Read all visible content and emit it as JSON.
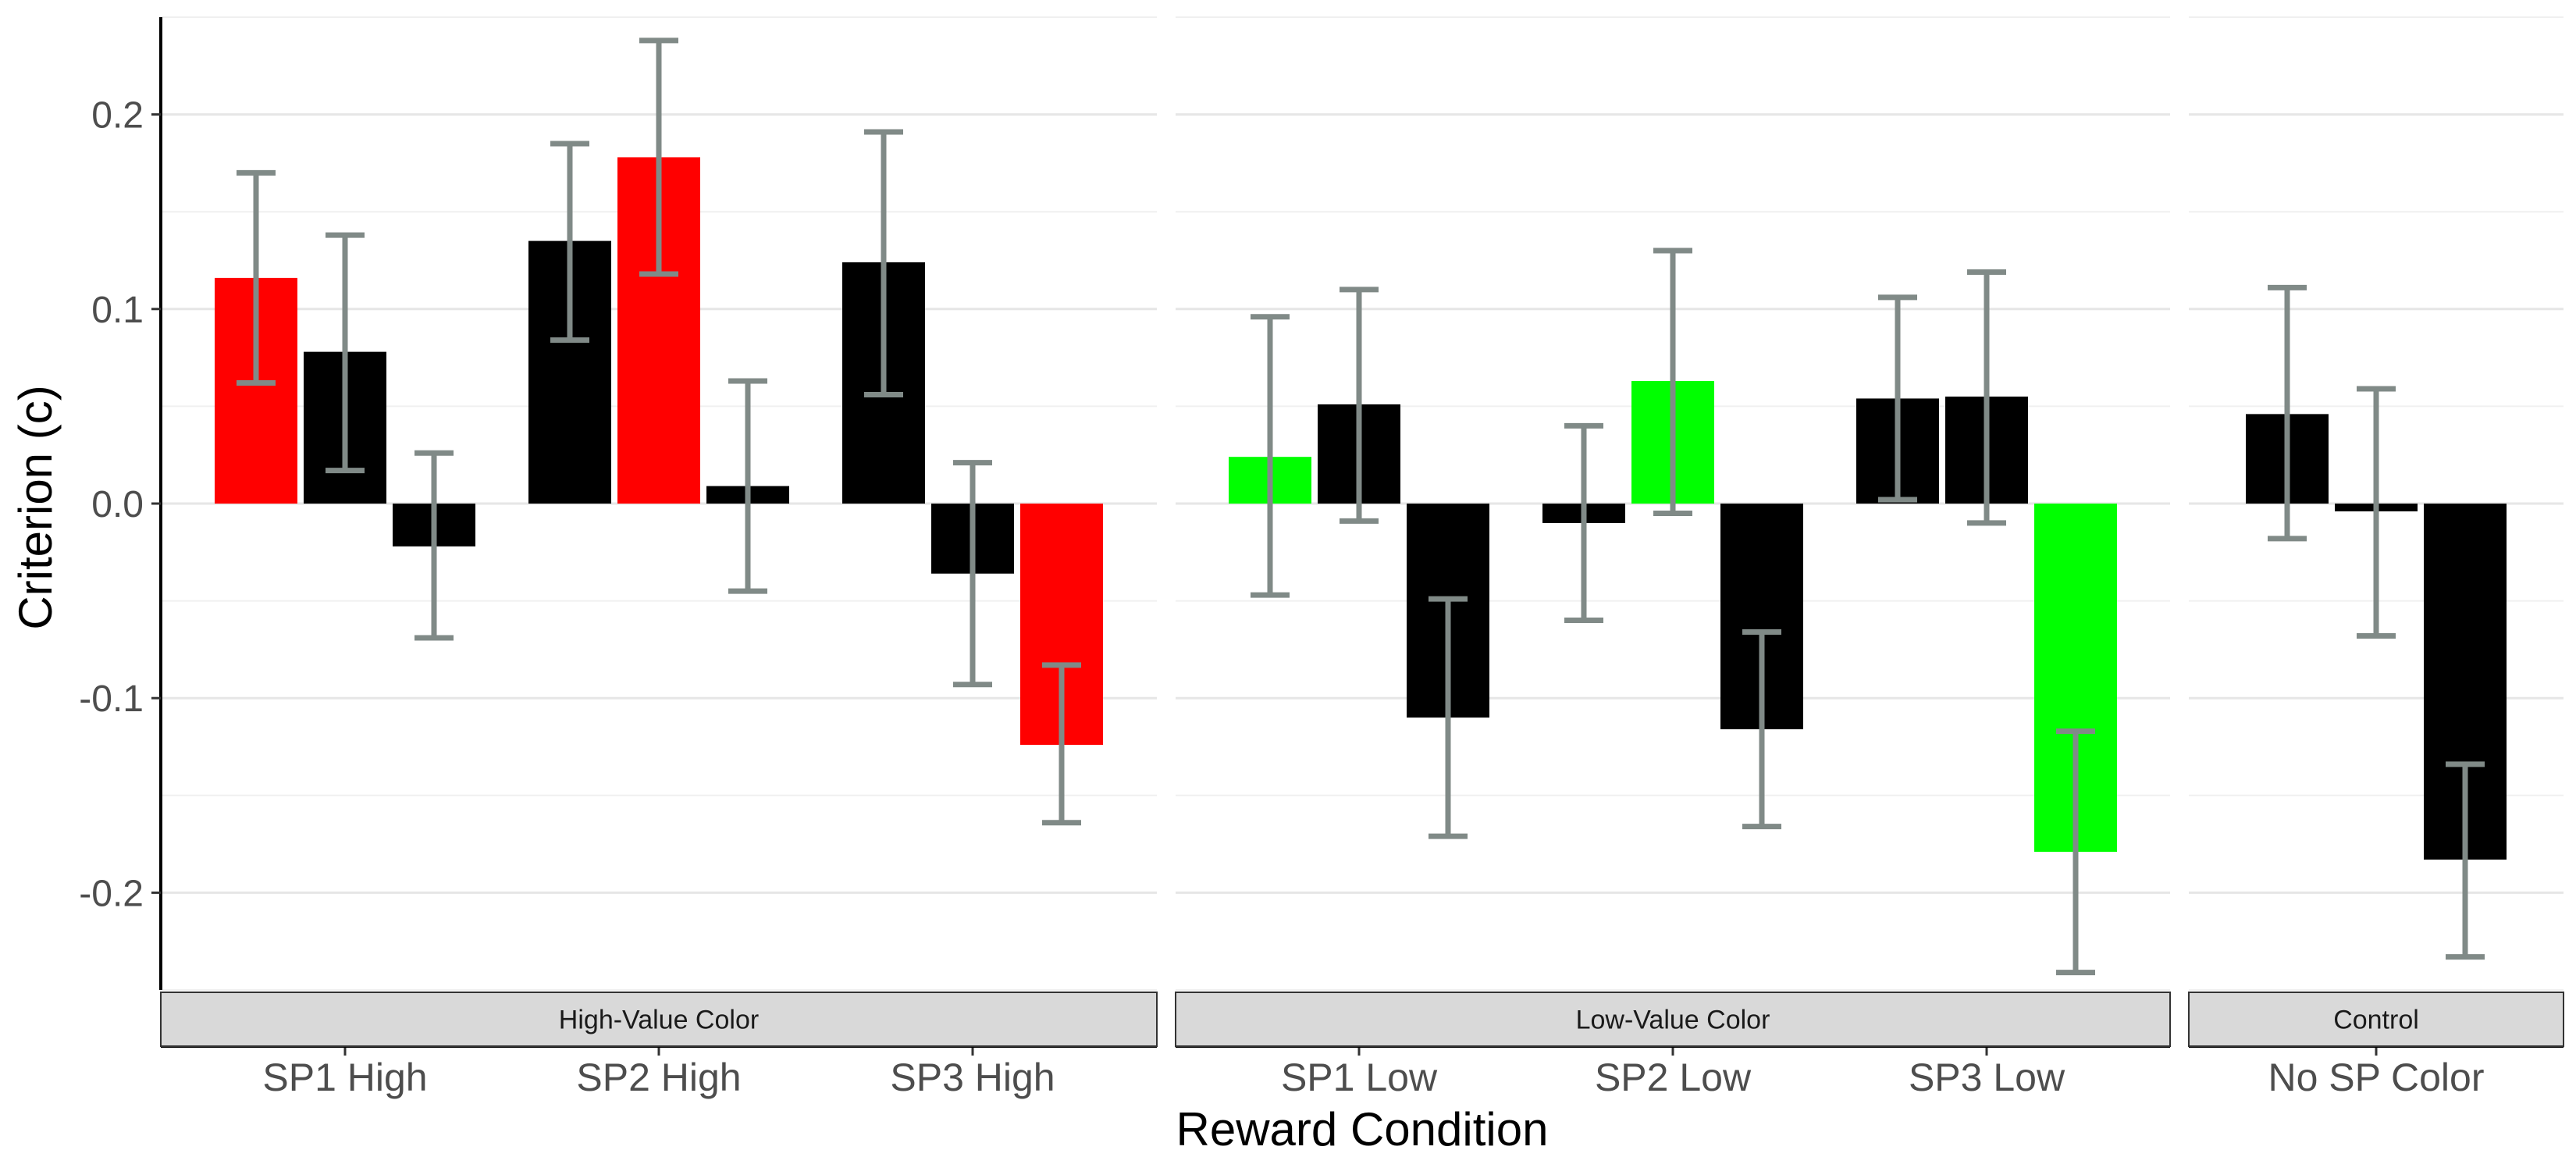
{
  "chart_data": {
    "type": "bar",
    "xlabel": "Reward Condition",
    "ylabel": "Criterion (c)",
    "ylim": [
      -0.25,
      0.25
    ],
    "yticks": [
      -0.2,
      -0.1,
      0.0,
      0.1,
      0.2
    ],
    "ytick_labels": [
      "-0.2",
      "-0.1",
      "0.0",
      "0.1",
      "0.2"
    ],
    "grid": true,
    "legend": "none",
    "colors": {
      "high": "#ff0000",
      "low": "#00ff00",
      "other": "#000000",
      "error_bar": "#808a87"
    },
    "panels": [
      {
        "strip_label": "High-Value Color",
        "groups": [
          {
            "label": "SP1 High",
            "bars": [
              {
                "value": 0.116,
                "ci": [
                  0.062,
                  0.17
                ],
                "color": "#ff0000"
              },
              {
                "value": 0.078,
                "ci": [
                  0.017,
                  0.138
                ],
                "color": "#000000"
              },
              {
                "value": -0.022,
                "ci": [
                  -0.069,
                  0.026
                ],
                "color": "#000000"
              }
            ]
          },
          {
            "label": "SP2 High",
            "bars": [
              {
                "value": 0.135,
                "ci": [
                  0.084,
                  0.185
                ],
                "color": "#000000"
              },
              {
                "value": 0.178,
                "ci": [
                  0.118,
                  0.238
                ],
                "color": "#ff0000"
              },
              {
                "value": 0.009,
                "ci": [
                  -0.045,
                  0.063
                ],
                "color": "#000000"
              }
            ]
          },
          {
            "label": "SP3 High",
            "bars": [
              {
                "value": 0.124,
                "ci": [
                  0.056,
                  0.191
                ],
                "color": "#000000"
              },
              {
                "value": -0.036,
                "ci": [
                  -0.093,
                  0.021
                ],
                "color": "#000000"
              },
              {
                "value": -0.124,
                "ci": [
                  -0.164,
                  -0.083
                ],
                "color": "#ff0000"
              }
            ]
          }
        ]
      },
      {
        "strip_label": "Low-Value Color",
        "groups": [
          {
            "label": "SP1 Low",
            "bars": [
              {
                "value": 0.024,
                "ci": [
                  -0.047,
                  0.096
                ],
                "color": "#00ff00"
              },
              {
                "value": 0.051,
                "ci": [
                  -0.009,
                  0.11
                ],
                "color": "#000000"
              },
              {
                "value": -0.11,
                "ci": [
                  -0.171,
                  -0.049
                ],
                "color": "#000000"
              }
            ]
          },
          {
            "label": "SP2 Low",
            "bars": [
              {
                "value": -0.01,
                "ci": [
                  -0.06,
                  0.04
                ],
                "color": "#000000"
              },
              {
                "value": 0.063,
                "ci": [
                  -0.005,
                  0.13
                ],
                "color": "#00ff00"
              },
              {
                "value": -0.116,
                "ci": [
                  -0.166,
                  -0.066
                ],
                "color": "#000000"
              }
            ]
          },
          {
            "label": "SP3 Low",
            "bars": [
              {
                "value": 0.054,
                "ci": [
                  0.002,
                  0.106
                ],
                "color": "#000000"
              },
              {
                "value": 0.055,
                "ci": [
                  -0.01,
                  0.119
                ],
                "color": "#000000"
              },
              {
                "value": -0.179,
                "ci": [
                  -0.241,
                  -0.117
                ],
                "color": "#00ff00"
              }
            ]
          }
        ]
      },
      {
        "strip_label": "Control",
        "groups": [
          {
            "label": "No SP Color",
            "bars": [
              {
                "value": 0.046,
                "ci": [
                  -0.018,
                  0.111
                ],
                "color": "#000000"
              },
              {
                "value": -0.004,
                "ci": [
                  -0.068,
                  0.059
                ],
                "color": "#000000"
              },
              {
                "value": -0.183,
                "ci": [
                  -0.233,
                  -0.134
                ],
                "color": "#000000"
              }
            ]
          }
        ]
      }
    ]
  }
}
